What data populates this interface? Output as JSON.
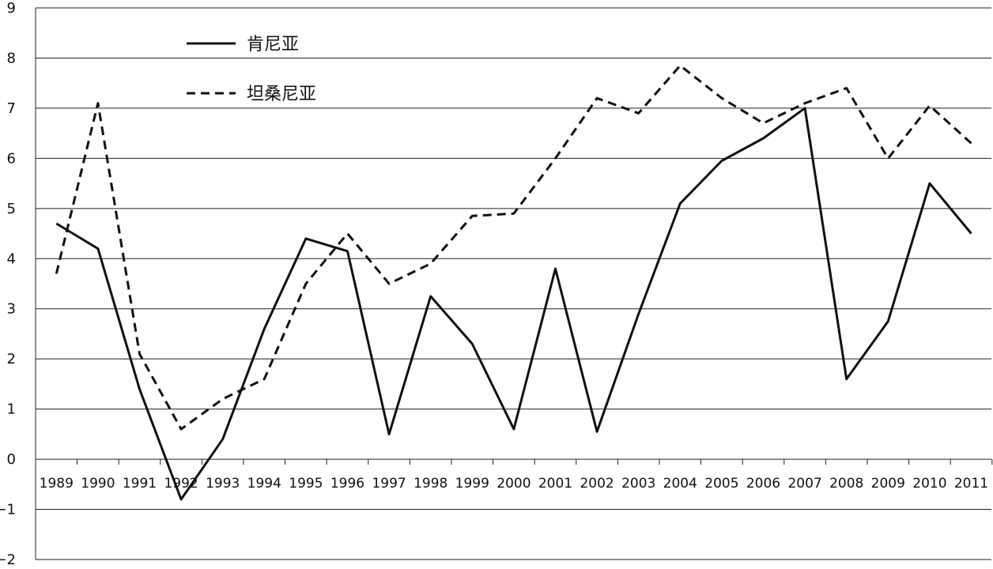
{
  "chart_data": {
    "type": "line",
    "title": "",
    "xlabel": "",
    "ylabel": "",
    "ylim": [
      -2,
      9
    ],
    "grid": true,
    "legend_position": "top-left",
    "categories": [
      "1989",
      "1990",
      "1991",
      "1992",
      "1993",
      "1994",
      "1995",
      "1996",
      "1997",
      "1998",
      "1999",
      "2000",
      "2001",
      "2002",
      "2003",
      "2004",
      "2005",
      "2006",
      "2007",
      "2008",
      "2009",
      "2010",
      "2011"
    ],
    "yticks": [
      "9",
      "8",
      "7",
      "6",
      "5",
      "4",
      "3",
      "2",
      "1",
      "0",
      "−1",
      "−2"
    ],
    "series": [
      {
        "name": "肯尼亚",
        "style": "solid",
        "color": "#111111",
        "values": [
          4.7,
          4.2,
          1.4,
          -0.8,
          0.4,
          2.6,
          4.4,
          4.15,
          0.5,
          3.25,
          2.3,
          0.6,
          3.8,
          0.55,
          2.9,
          5.1,
          5.95,
          6.4,
          7.0,
          1.6,
          2.75,
          5.5,
          4.5
        ]
      },
      {
        "name": "坦桑尼亚",
        "style": "dashed",
        "color": "#111111",
        "values": [
          3.7,
          7.1,
          2.1,
          0.6,
          1.2,
          1.6,
          3.5,
          4.5,
          3.5,
          3.9,
          4.85,
          4.9,
          6.0,
          7.2,
          6.9,
          7.85,
          7.2,
          6.7,
          7.1,
          7.4,
          6.0,
          7.05,
          6.3
        ]
      }
    ]
  }
}
